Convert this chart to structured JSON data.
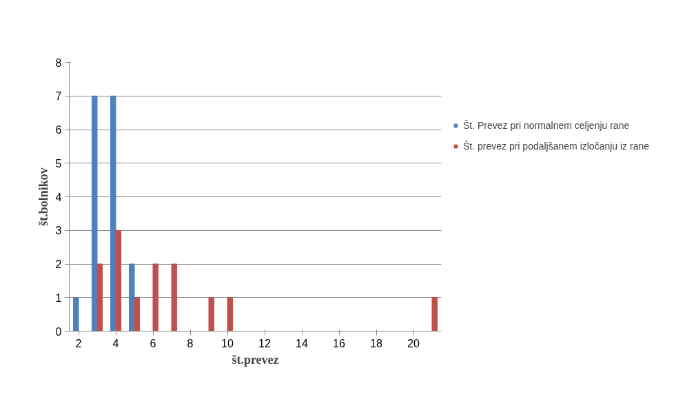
{
  "chart_data": {
    "type": "bar",
    "xlabel": "št.prevez",
    "ylabel": "št.bolnikov",
    "categories": [
      "2",
      null,
      "4",
      null,
      "6",
      null,
      "8",
      null,
      "10",
      null,
      "12",
      null,
      "14",
      null,
      "16",
      null,
      "18",
      null,
      "20",
      null
    ],
    "series": [
      {
        "name": "Št. Prevez pri normalnem celjenju rane",
        "color": "#4f81bd",
        "values": [
          1,
          7,
          7,
          2,
          0,
          0,
          0,
          0,
          0,
          0,
          0,
          0,
          0,
          0,
          0,
          0,
          0,
          0,
          0,
          0
        ]
      },
      {
        "name": "Št. prevez pri podaljšanem izločanju iz rane",
        "color": "#c0504d",
        "values": [
          0,
          2,
          3,
          1,
          2,
          2,
          0,
          1,
          1,
          0,
          0,
          0,
          0,
          0,
          0,
          0,
          0,
          0,
          0,
          1
        ]
      }
    ],
    "ylim": [
      0,
      8
    ],
    "yticks": [
      0,
      1,
      2,
      3,
      4,
      5,
      6,
      7,
      8
    ],
    "grid": "y",
    "legend": "right"
  }
}
